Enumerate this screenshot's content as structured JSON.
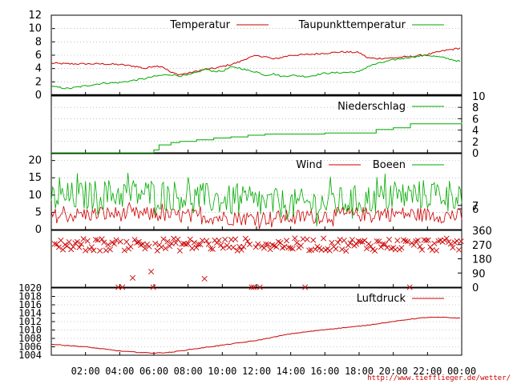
{
  "colors": {
    "red": "#cc0000",
    "green": "#00aa00",
    "frame": "#000000",
    "grid": "#999999"
  },
  "x_axis": {
    "ticks": [
      "02:00",
      "04:00",
      "06:00",
      "08:00",
      "10:00",
      "12:00",
      "14:00",
      "16:00",
      "18:00",
      "20:00",
      "22:00",
      "00:00"
    ],
    "range_hours": [
      0,
      24
    ]
  },
  "source_url": "http://www.tiefflieger.de/wetter/",
  "chart_data": [
    {
      "type": "line",
      "panel": "temperature",
      "y_ticks_left": [
        "0",
        "2",
        "4",
        "6",
        "8",
        "10",
        "12"
      ],
      "ylim": [
        0,
        12
      ],
      "x": [
        0,
        1,
        2,
        3,
        4,
        5,
        5.5,
        6,
        6.5,
        7,
        7.5,
        8,
        8.5,
        9,
        9.5,
        10,
        10.5,
        11,
        11.5,
        12,
        12.5,
        13,
        13.5,
        14,
        15,
        16,
        17,
        18,
        18.5,
        19,
        20,
        21,
        22,
        23,
        24
      ],
      "series": [
        {
          "name": "Temperatur",
          "color": "#cc0000",
          "values": [
            4.8,
            4.7,
            4.7,
            4.7,
            4.6,
            4.3,
            4.0,
            4.4,
            4.3,
            3.4,
            3.1,
            3.3,
            3.6,
            3.9,
            4.0,
            4.3,
            4.6,
            5.0,
            5.6,
            5.9,
            5.8,
            5.4,
            5.7,
            6.0,
            6.1,
            6.3,
            6.5,
            6.4,
            5.6,
            5.5,
            5.6,
            5.8,
            6.1,
            6.7,
            7.1
          ]
        },
        {
          "name": "Taupunkttemperatur",
          "color": "#00aa00",
          "values": [
            1.3,
            1.0,
            1.4,
            1.8,
            1.9,
            2.3,
            2.5,
            2.8,
            3.0,
            3.1,
            2.9,
            3.0,
            3.4,
            3.9,
            3.6,
            3.6,
            4.2,
            4.1,
            3.7,
            3.5,
            3.0,
            3.2,
            2.8,
            3.0,
            2.8,
            3.3,
            3.4,
            3.5,
            4.3,
            4.7,
            5.3,
            5.7,
            6.0,
            5.6,
            5.0
          ]
        }
      ]
    },
    {
      "type": "line",
      "panel": "precipitation",
      "y_ticks_right": [
        "0",
        "2",
        "4",
        "6",
        "8",
        "10"
      ],
      "ylim": [
        0,
        10
      ],
      "x": [
        0,
        5.9,
        6.0,
        6.3,
        7,
        7.5,
        8.5,
        9.5,
        10.5,
        11.5,
        12.5,
        16,
        19,
        20,
        21,
        24
      ],
      "series": [
        {
          "name": "Niederschlag",
          "color": "#00aa00",
          "values": [
            0,
            0,
            0.5,
            1.4,
            1.8,
            2.0,
            2.3,
            2.6,
            2.8,
            3.1,
            3.3,
            3.5,
            4.1,
            4.4,
            5.1,
            5.3
          ]
        }
      ]
    },
    {
      "type": "line",
      "panel": "wind",
      "y_ticks_left": [
        "0",
        "5",
        "10",
        "15",
        "20"
      ],
      "y_ticks_right": [
        "6",
        "7"
      ],
      "ylim": [
        0,
        22
      ],
      "series": [
        {
          "name": "Wind",
          "color": "#cc0000",
          "mean": 3.5,
          "amplitude": 2.2
        },
        {
          "name": "Boeen",
          "color": "#00aa00",
          "mean": 8.0,
          "amplitude": 4.5
        }
      ]
    },
    {
      "type": "scatter",
      "panel": "wind_direction",
      "y_ticks_right": [
        "0",
        "90",
        "180",
        "270",
        "360"
      ],
      "ylim": [
        0,
        360
      ],
      "series": [
        {
          "name": "",
          "color": "#cc0000",
          "marker": "x",
          "typical": 270,
          "spread": 40
        }
      ]
    },
    {
      "type": "line",
      "panel": "pressure",
      "y_ticks_left": [
        "1004",
        "1006",
        "1008",
        "1010",
        "1012",
        "1014",
        "1016",
        "1018",
        "1020"
      ],
      "ylim": [
        1004,
        1020
      ],
      "x": [
        0,
        2,
        4,
        5,
        6,
        7,
        8,
        10,
        12,
        14,
        16,
        18,
        20,
        21,
        22,
        23,
        24
      ],
      "series": [
        {
          "name": "Luftdruck",
          "color": "#cc0000",
          "values": [
            1006.6,
            1006.0,
            1005.0,
            1004.7,
            1004.5,
            1004.7,
            1005.3,
            1006.4,
            1007.5,
            1009.1,
            1010.1,
            1010.9,
            1012.0,
            1012.6,
            1013.0,
            1013.0,
            1012.8
          ]
        }
      ]
    }
  ]
}
